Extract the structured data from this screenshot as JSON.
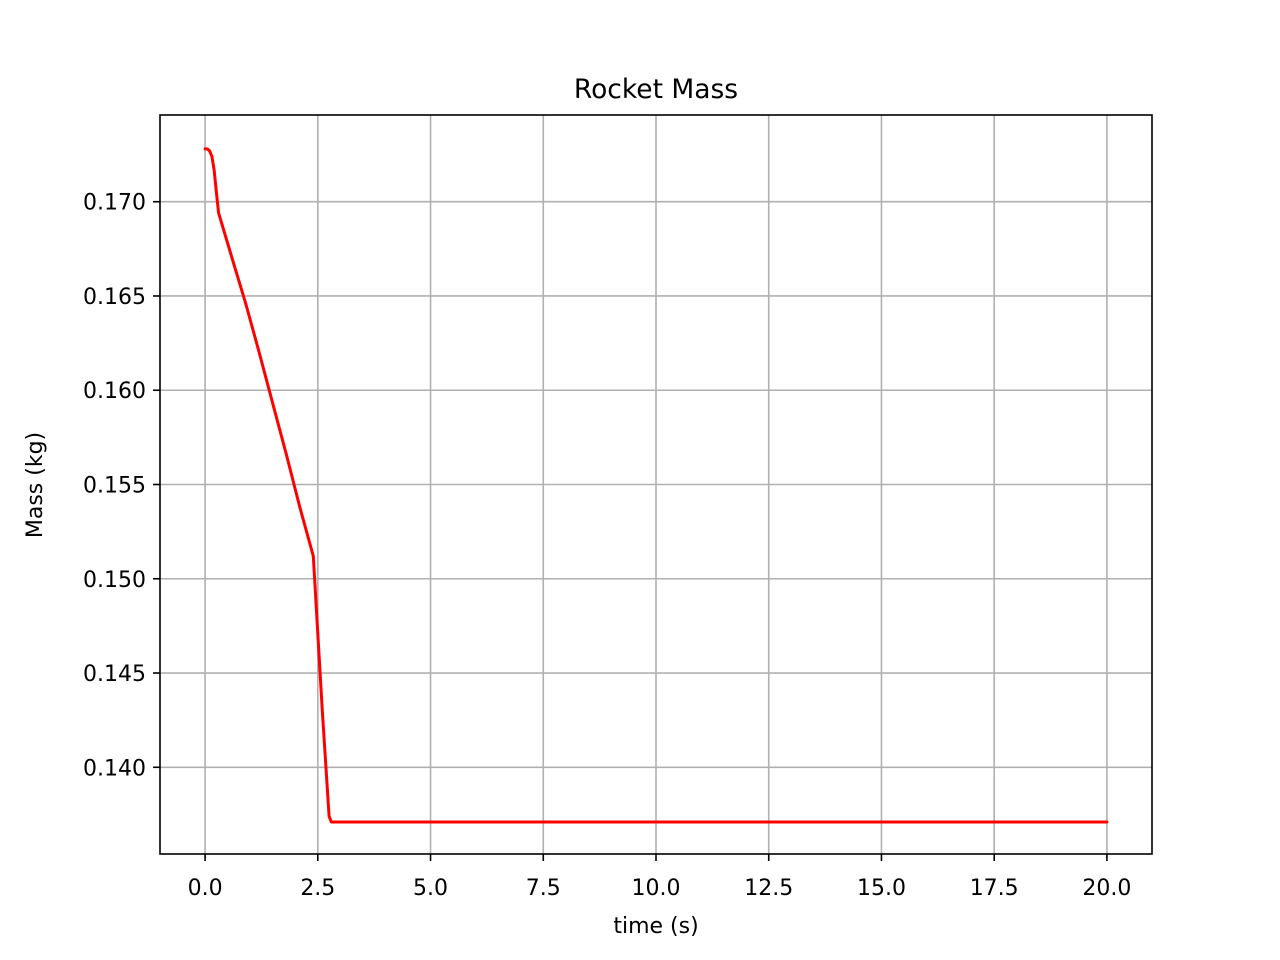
{
  "chart_data": {
    "type": "line",
    "title": "Rocket Mass",
    "xlabel": "time (s)",
    "ylabel": "Mass (kg)",
    "xlim": [
      -1.0,
      21.0
    ],
    "ylim": [
      0.1354,
      0.1746
    ],
    "grid": true,
    "line_color": "#ff0000",
    "grid_color": "#b0b0b0",
    "x_ticks": [
      0.0,
      2.5,
      5.0,
      7.5,
      10.0,
      12.5,
      15.0,
      17.5,
      20.0
    ],
    "x_tick_labels": [
      "0.0",
      "2.5",
      "5.0",
      "7.5",
      "10.0",
      "12.5",
      "15.0",
      "17.5",
      "20.0"
    ],
    "y_ticks": [
      0.14,
      0.145,
      0.15,
      0.155,
      0.16,
      0.165,
      0.17
    ],
    "y_tick_labels": [
      "0.140",
      "0.145",
      "0.150",
      "0.155",
      "0.160",
      "0.165",
      "0.170"
    ],
    "series": [
      {
        "x": [
          0.0,
          0.05,
          0.1,
          0.15,
          0.2,
          0.25,
          0.3,
          0.4,
          0.6,
          0.9,
          1.2,
          1.5,
          1.8,
          2.1,
          2.4,
          2.6,
          2.75,
          2.8,
          5.0,
          10.0,
          15.0,
          20.0
        ],
        "values": [
          0.1728,
          0.1728,
          0.1727,
          0.1724,
          0.1717,
          0.1705,
          0.1694,
          0.1686,
          0.167,
          0.1646,
          0.162,
          0.1593,
          0.1566,
          0.1538,
          0.1512,
          0.143,
          0.1374,
          0.1371,
          0.1371,
          0.1371,
          0.1371,
          0.1371
        ]
      }
    ]
  }
}
